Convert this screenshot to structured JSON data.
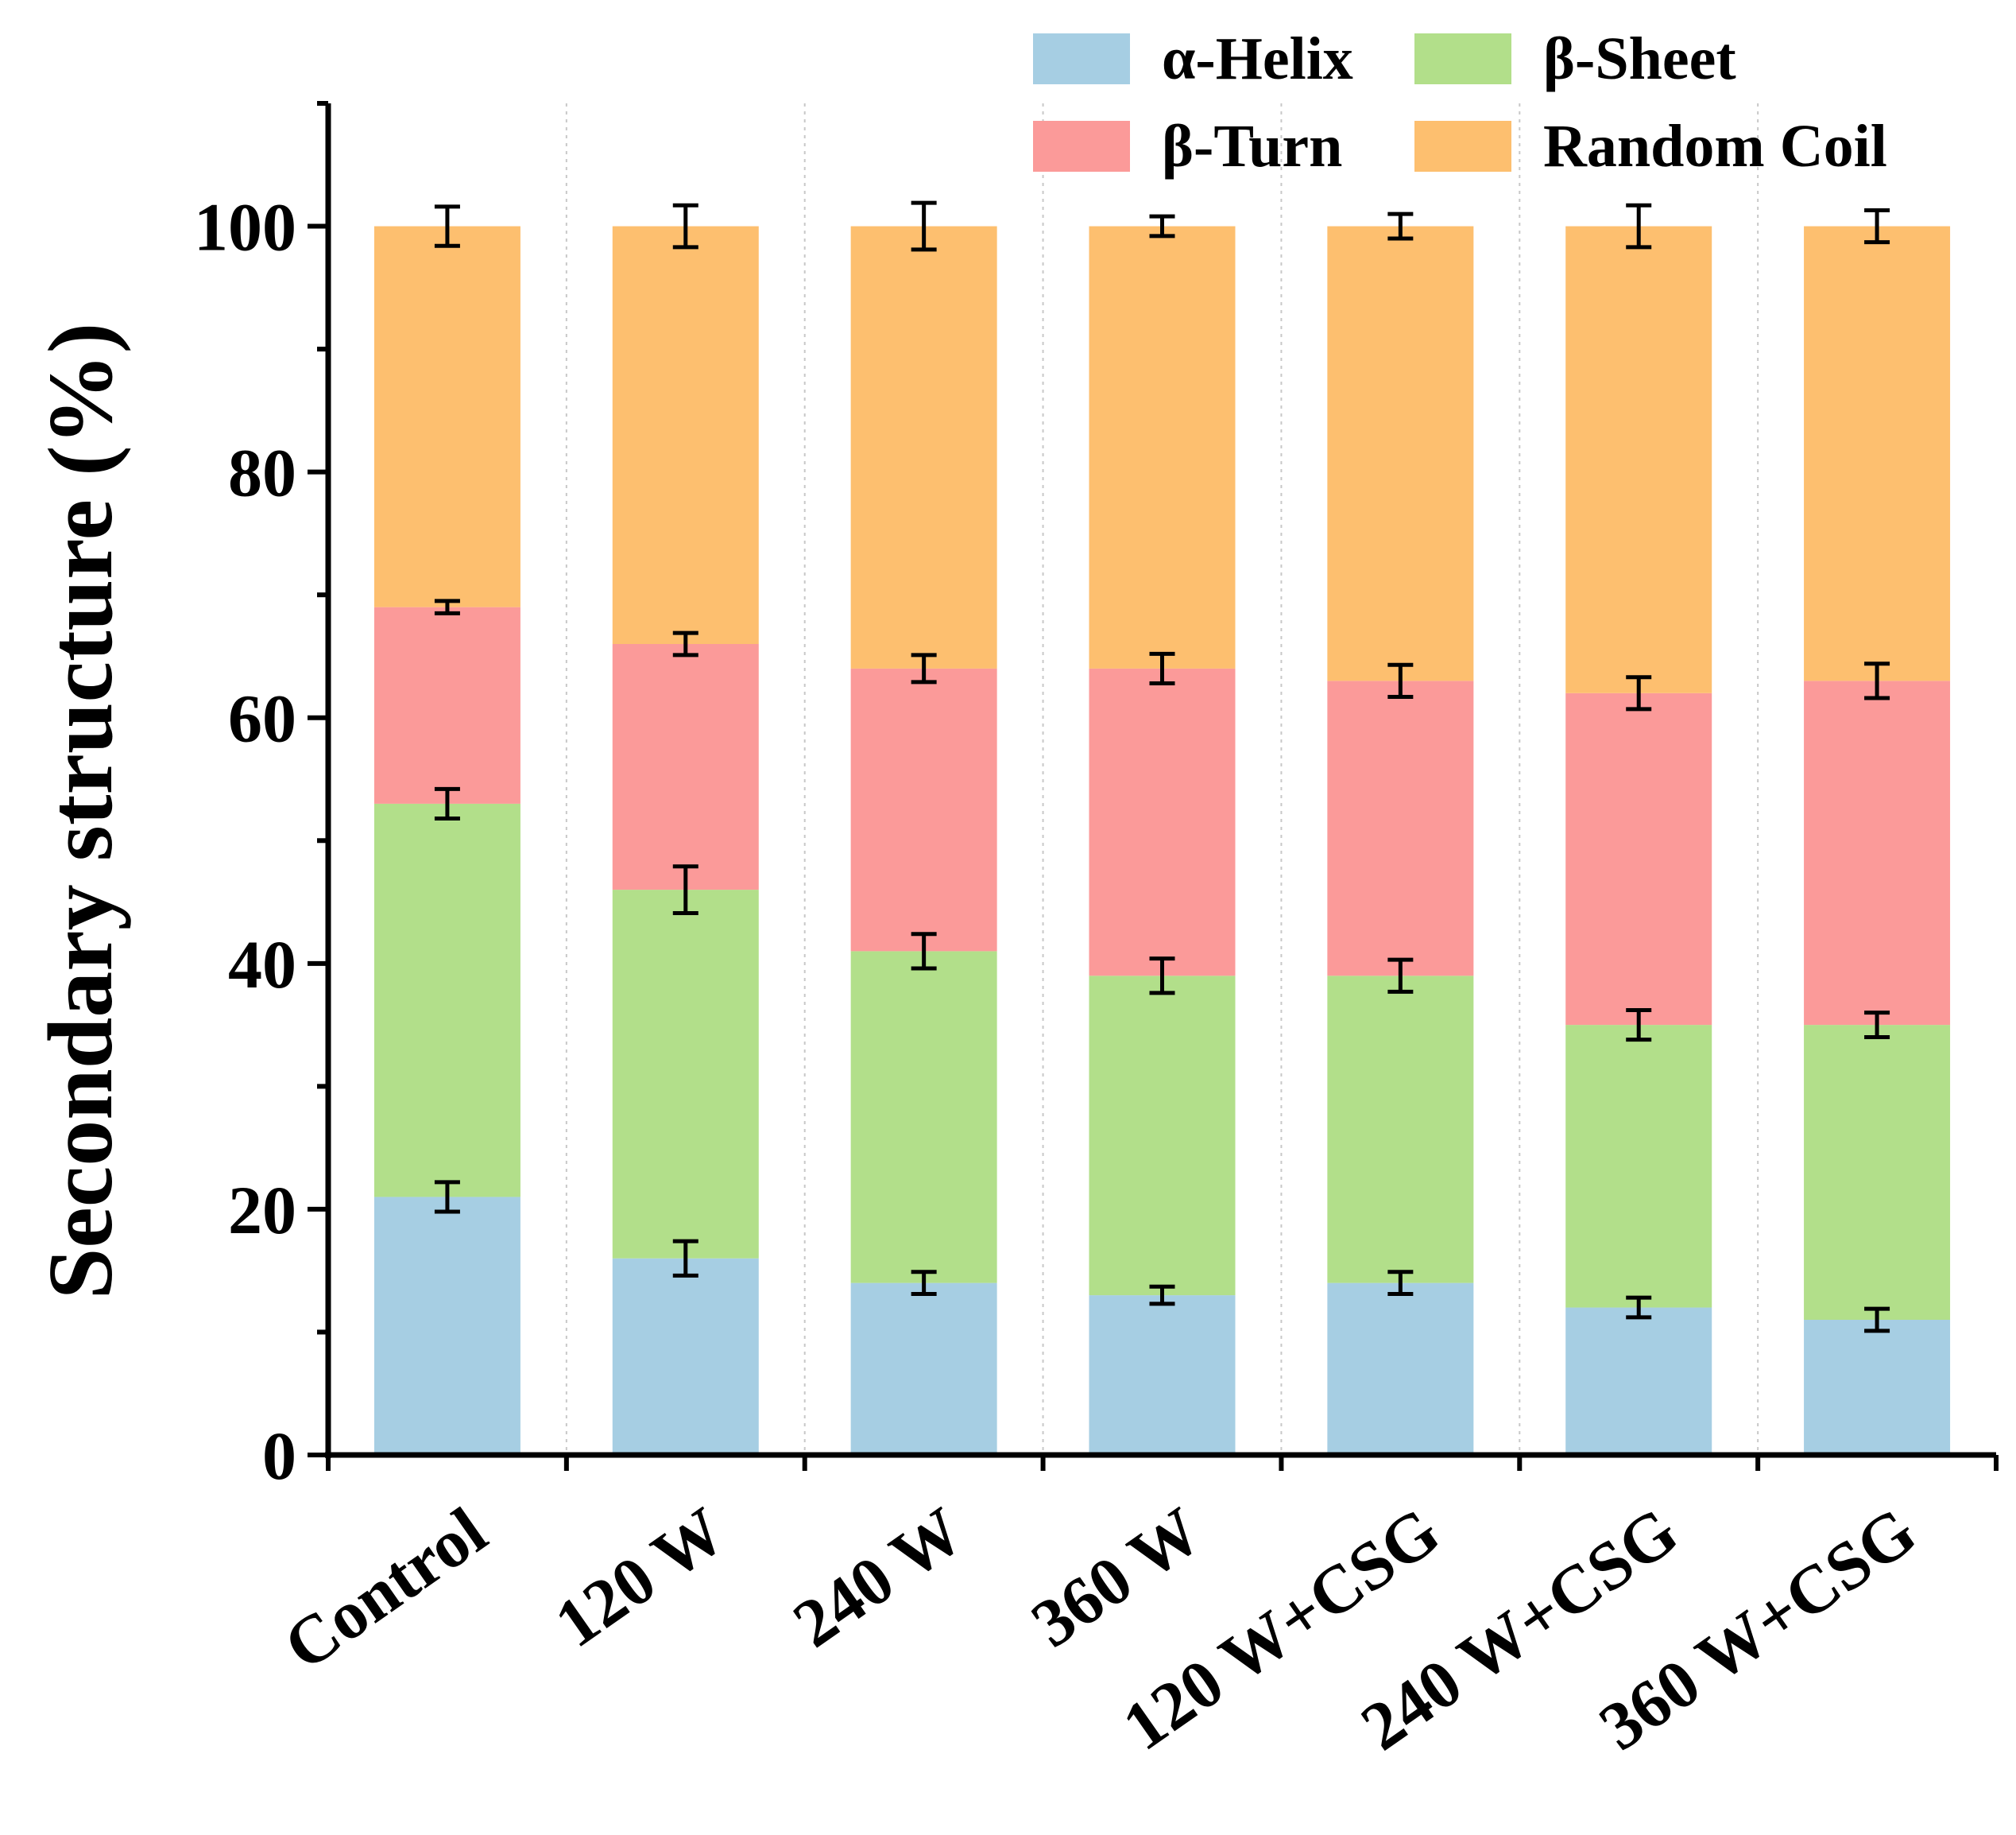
{
  "chart_data": {
    "type": "bar",
    "stacked": true,
    "title": "",
    "xlabel": "",
    "ylabel": "Secondary structure (%)",
    "ylim": [
      0,
      110
    ],
    "yticks": [
      0,
      20,
      40,
      60,
      80,
      100
    ],
    "grid": false,
    "legend_position": "top-right",
    "categories": [
      "Control",
      "120 W",
      "240 W",
      "360 W",
      "120 W+CSG",
      "240 W+CSG",
      "360 W+CSG"
    ],
    "series": [
      {
        "name": "α-Helix",
        "color": "#a6cee3",
        "values": [
          21,
          16,
          14,
          13,
          14,
          12,
          11
        ],
        "errors": [
          1.2,
          1.4,
          0.9,
          0.7,
          0.9,
          0.8,
          0.9
        ]
      },
      {
        "name": "β-Sheet",
        "color": "#b2df8a",
        "values": [
          32,
          30,
          27,
          26,
          25,
          23,
          24
        ],
        "errors": [
          1.2,
          1.9,
          1.4,
          1.4,
          1.3,
          1.2,
          1.0
        ]
      },
      {
        "name": "β-Turn",
        "color": "#fb9a99",
        "values": [
          16,
          20,
          23,
          25,
          24,
          27,
          28
        ],
        "errors": [
          0.5,
          0.9,
          1.1,
          1.2,
          1.3,
          1.3,
          1.4
        ]
      },
      {
        "name": "Random Coil",
        "color": "#fdbf6f",
        "values": [
          31,
          34,
          36,
          36,
          37,
          38,
          37
        ],
        "errors": [
          1.6,
          1.7,
          1.9,
          0.8,
          1.0,
          1.7,
          1.3
        ]
      }
    ]
  }
}
